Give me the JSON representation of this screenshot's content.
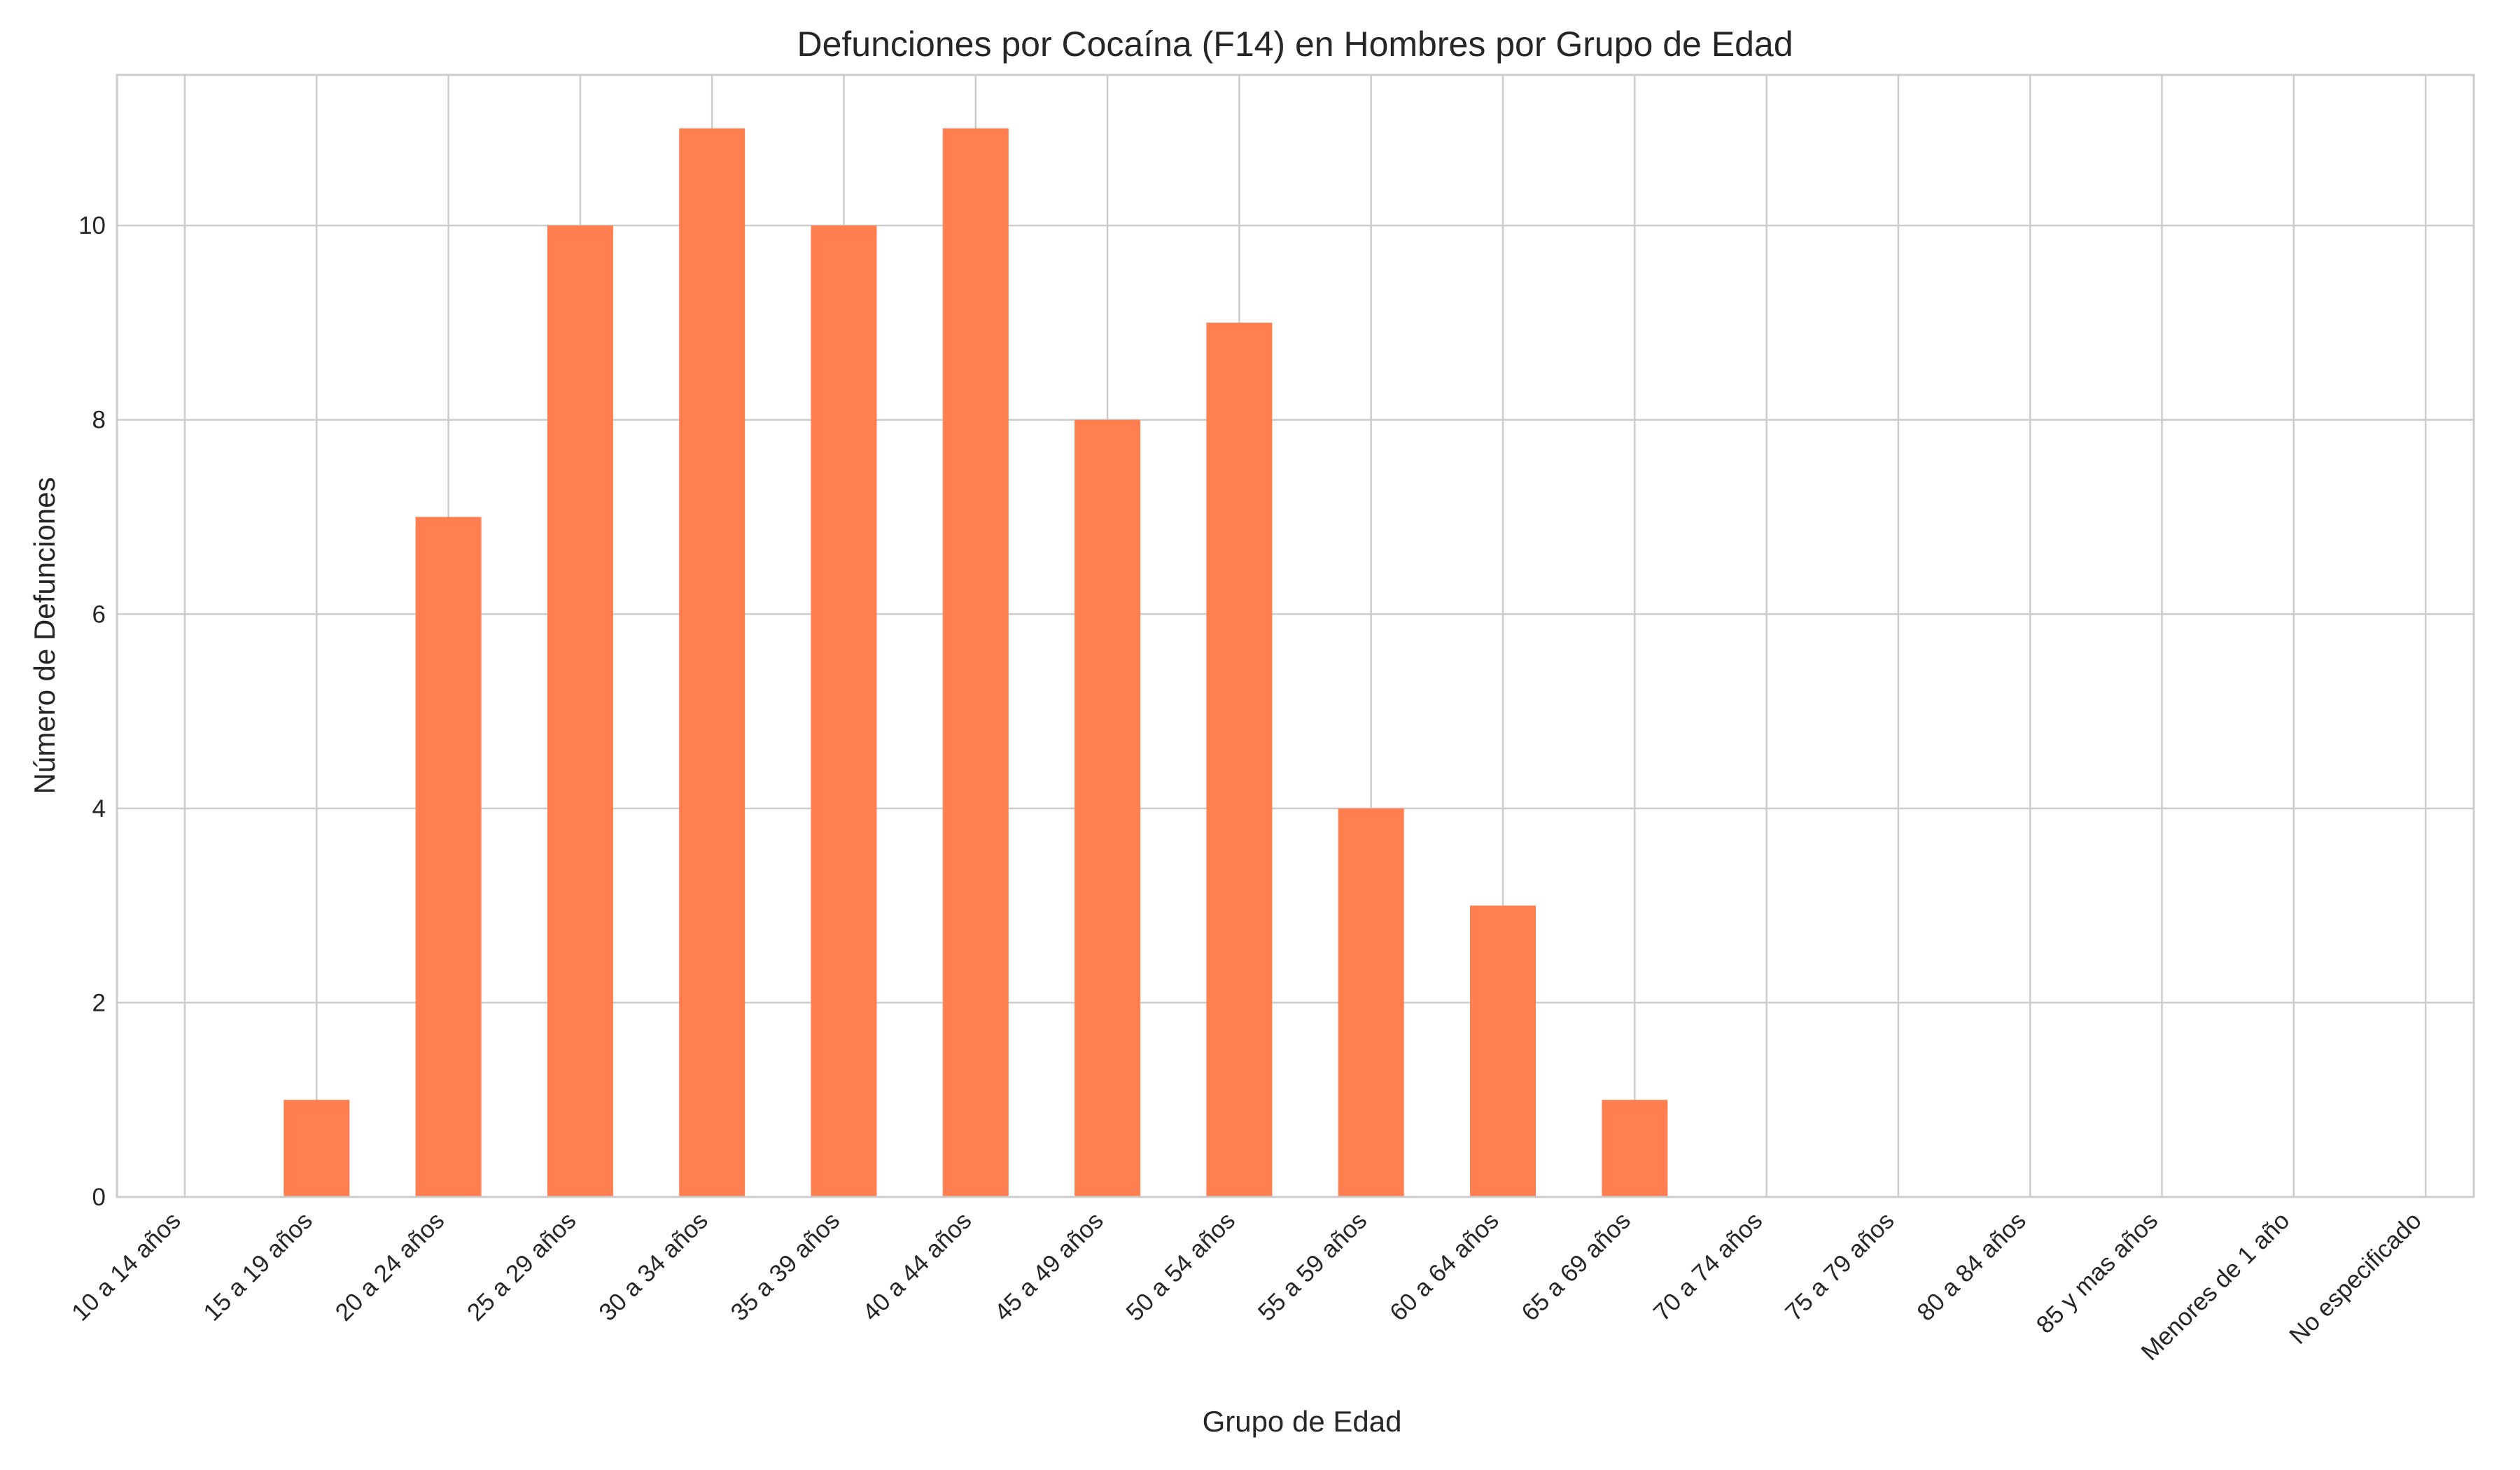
{
  "chart_data": {
    "type": "bar",
    "title": "Defunciones por Cocaína (F14) en Hombres por Grupo de Edad",
    "xlabel": "Grupo de Edad",
    "ylabel": "Número de Defunciones",
    "categories": [
      "10 a 14 años",
      "15 a 19 años",
      "20 a 24 años",
      "25 a 29 años",
      "30 a 34 años",
      "35 a 39 años",
      "40 a 44 años",
      "45 a 49 años",
      "50 a 54 años",
      "55 a 59 años",
      "60 a 64 años",
      "65 a 69 años",
      "70 a 74 años",
      "75 a 79 años",
      "80 a 84 años",
      "85 y mas años",
      "Menores de 1 año",
      "No especificado"
    ],
    "values": [
      0,
      1,
      7,
      10,
      11,
      10,
      11,
      8,
      9,
      4,
      3,
      1,
      0,
      0,
      0,
      0,
      0,
      0
    ],
    "ylim": [
      0,
      11.55
    ],
    "yticks": [
      0,
      2,
      4,
      6,
      8,
      10
    ],
    "grid": true,
    "colors": {
      "bar": "#ff7f50",
      "grid": "#cccccc",
      "text": "#262626"
    }
  }
}
